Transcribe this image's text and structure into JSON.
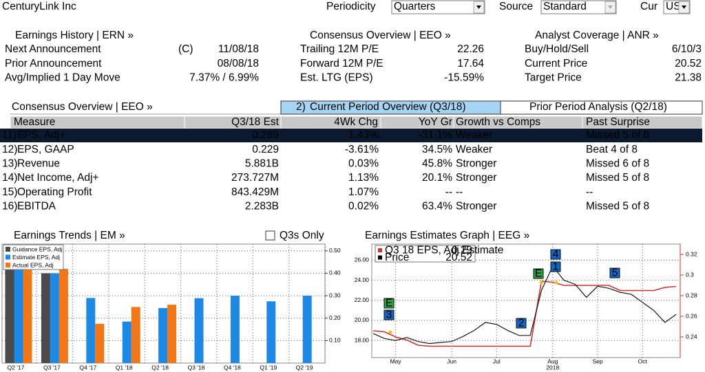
{
  "header": {
    "company": "CenturyLink Inc",
    "periodicity_label": "Periodicity",
    "periodicity": "Quarters",
    "source_label": "Source",
    "source": "Standard",
    "currency_label": "Cur",
    "currency": "USD"
  },
  "summary": [
    {
      "title": "Earnings History | ERN »",
      "rows": [
        {
          "label": "Next Announcement",
          "prefix": "(C)",
          "value": "11/08/18"
        },
        {
          "label": "Prior Announcement",
          "value": "08/08/18"
        },
        {
          "label": "Avg/Implied 1 Day Move",
          "value": "7.37% / 6.99%"
        }
      ]
    },
    {
      "title": "Consensus Overview | EEO »",
      "rows": [
        {
          "label": "Trailing 12M P/E",
          "value": "22.26"
        },
        {
          "label": "Forward 12M P/E",
          "value": "17.64"
        },
        {
          "label": "Est. LTG (EPS)",
          "value": "-15.59%"
        }
      ]
    },
    {
      "title": "Analyst Coverage | ANR »",
      "rows": [
        {
          "label": "Buy/Hold/Sell",
          "value": "6/10/3"
        },
        {
          "label": "Current Price",
          "value": "20.52"
        },
        {
          "label": "Target Price",
          "value": "21.38"
        }
      ]
    }
  ],
  "table": {
    "title": "Consensus Overview | EEO »",
    "tabs": [
      {
        "number": "2)",
        "label": "Current Period Overview (Q3/18)",
        "active": true
      },
      {
        "label": "Prior Period Analysis (Q2/18)",
        "active": false
      }
    ],
    "columns": [
      "Measure",
      "Q3/18 Est",
      "4Wk Chg",
      "YoY Gr",
      "Growth vs Comps",
      "Past Surprise"
    ],
    "rows": [
      {
        "number": "11)",
        "selected": true,
        "cells": [
          "EPS, Adj+",
          "0.289",
          "1.43%",
          "-31.1%",
          "Weaker",
          "Missed 5 of 8"
        ]
      },
      {
        "number": "12)",
        "selected": false,
        "cells": [
          "EPS, GAAP",
          "0.229",
          "-3.61%",
          "34.5%",
          "Weaker",
          "Beat 4 of 8"
        ]
      },
      {
        "number": "13)",
        "selected": false,
        "cells": [
          "Revenue",
          "5.881B",
          "0.03%",
          "45.8%",
          "Stronger",
          "Missed 6 of 8"
        ]
      },
      {
        "number": "14)",
        "selected": false,
        "cells": [
          "Net Income, Adj+",
          "273.727M",
          "1.13%",
          "20.1%",
          "Stronger",
          "Missed 5 of 8"
        ]
      },
      {
        "number": "15)",
        "selected": false,
        "cells": [
          "Operating Profit",
          "843.429M",
          "1.07%",
          "--",
          "--",
          "--"
        ]
      },
      {
        "number": "16)",
        "selected": false,
        "cells": [
          "EBITDA",
          "2.283B",
          "0.02%",
          "63.4%",
          "Stronger",
          "Missed 5 of 8"
        ]
      }
    ]
  },
  "chart_data": [
    {
      "type": "bar",
      "title": "Earnings Trends | EM »",
      "checkbox_label": "Q3s Only",
      "categories": [
        "Q2 '17",
        "Q3 '17",
        "Q4 '17",
        "Q1 '18",
        "Q2 '18",
        "Q3 '18",
        "Q4 '18",
        "Q1 '19",
        "Q2 '19"
      ],
      "series": [
        {
          "name": "Guidance EPS, Adj",
          "color": "#4a4a4a",
          "values": [
            0.47,
            0.4,
            null,
            null,
            null,
            null,
            null,
            null,
            null
          ]
        },
        {
          "name": "Estimate EPS, Adj",
          "color": "#1e88e5",
          "values": [
            0.47,
            0.4,
            0.29,
            0.185,
            0.245,
            0.289,
            0.3,
            0.275,
            0.3
          ]
        },
        {
          "name": "Actual EPS, Adj",
          "color": "#f07818",
          "values": [
            0.47,
            0.42,
            0.175,
            0.25,
            0.26,
            null,
            null,
            null,
            null
          ]
        }
      ],
      "ylim": [
        0,
        0.53
      ],
      "yticks": [
        {
          "value": 0.1,
          "label": "0.10"
        },
        {
          "value": 0.2,
          "label": "0.20"
        },
        {
          "value": 0.3,
          "label": "0.30"
        },
        {
          "value": 0.4,
          "label": "0.40"
        },
        {
          "value": 0.5,
          "label": "0.50"
        }
      ],
      "grid": true,
      "legend": "top-left"
    },
    {
      "type": "line",
      "title": "Earnings Estimates Graph | EEG »",
      "categories": [
        null,
        null,
        "May",
        null,
        null,
        null,
        null,
        "Jun",
        null,
        null,
        null,
        "Jul",
        null,
        null,
        null,
        null,
        "Aug",
        null,
        null,
        null,
        "Sep",
        null,
        null,
        null,
        "Oct",
        null,
        null,
        null
      ],
      "year_label": "2018",
      "series": [
        {
          "name": "Q3 18 EPS, Adj Estimate",
          "legend_value": "0.29",
          "color": "#d32f2f",
          "axis": "y2",
          "values": [
            0.246,
            0.245,
            0.24,
            0.237,
            0.232,
            0.231,
            0.231,
            0.231,
            0.231,
            0.231,
            0.231,
            0.231,
            0.231,
            0.231,
            0.231,
            0.294,
            0.293,
            0.29,
            0.29,
            0.29,
            0.29,
            0.29,
            0.285,
            0.285,
            0.285,
            0.285,
            0.288,
            0.289
          ]
        },
        {
          "name": "Price",
          "legend_value": "20.52",
          "color": "#000000",
          "values": [
            18.7,
            18.2,
            18.0,
            18.3,
            17.9,
            17.7,
            17.8,
            17.9,
            18.4,
            19.0,
            19.8,
            19.6,
            19.0,
            18.5,
            18.5,
            23.0,
            25.4,
            24.0,
            23.6,
            22.3,
            23.4,
            23.2,
            22.8,
            22.6,
            21.8,
            21.0,
            19.8,
            20.6
          ]
        }
      ],
      "ylim": [
        16.3,
        27.6
      ],
      "yticks": [
        {
          "value": 18,
          "label": "18.00"
        },
        {
          "value": 20,
          "label": "20.00"
        },
        {
          "value": 22,
          "label": "22.00"
        },
        {
          "value": 24,
          "label": "24.00"
        },
        {
          "value": 26,
          "label": "26.00"
        }
      ],
      "y2lim": [
        0.22,
        0.33
      ],
      "y2ticks": [
        0.24,
        0.26,
        0.28,
        0.3,
        0.32
      ],
      "grid": true,
      "legend": "top-left",
      "events": [
        {
          "label": "E",
          "color": "#2ea043"
        },
        {
          "label": "3",
          "color": "#1565c0"
        },
        {
          "label": "2",
          "color": "#1565c0"
        },
        {
          "label": "E",
          "color": "#2ea043"
        },
        {
          "label": "4",
          "color": "#1565c0"
        },
        {
          "label": "1",
          "color": "#1565c0"
        },
        {
          "label": "5",
          "color": "#1565c0"
        }
      ]
    }
  ]
}
